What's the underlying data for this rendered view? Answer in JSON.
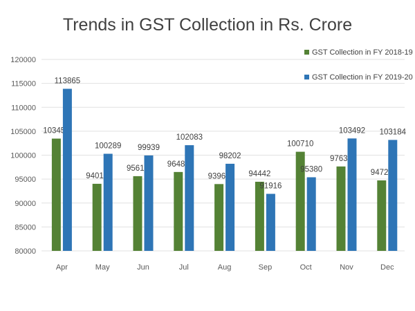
{
  "chart_data": {
    "type": "bar",
    "title": "Trends in GST Collection in Rs. Crore",
    "xlabel": "",
    "ylabel": "",
    "categories": [
      "Apr",
      "May",
      "Jun",
      "Jul",
      "Aug",
      "Sep",
      "Oct",
      "Nov",
      "Dec"
    ],
    "series": [
      {
        "name": "GST Collection in FY 2018-19",
        "color": "#548235",
        "values": [
          103459,
          94016,
          95610,
          96483,
          93960,
          94442,
          100710,
          97637,
          94726
        ]
      },
      {
        "name": "GST Collection in FY 2019-20",
        "color": "#2E75B6",
        "values": [
          113865,
          100289,
          99939,
          102083,
          98202,
          91916,
          95380,
          103492,
          103184
        ]
      }
    ],
    "ylim": [
      80000,
      120000
    ],
    "yticks": [
      80000,
      85000,
      90000,
      95000,
      100000,
      105000,
      110000,
      115000,
      120000
    ],
    "grid": true,
    "legend": "top-right",
    "data_labels": true
  }
}
